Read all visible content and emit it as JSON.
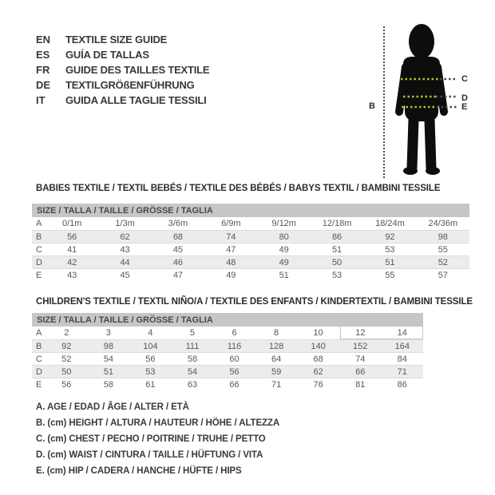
{
  "languages": [
    {
      "code": "EN",
      "title": "TEXTILE SIZE GUIDE"
    },
    {
      "code": "ES",
      "title": "GUÍA DE TALLAS"
    },
    {
      "code": "FR",
      "title": "GUIDE DES TAILLES TEXTILE"
    },
    {
      "code": "DE",
      "title": "TEXTILGRÖßENFÜHRUNG"
    },
    {
      "code": "IT",
      "title": "GUIDA ALLE TAGLIE TESSILI"
    }
  ],
  "figure": {
    "height_label": "B",
    "chest_label": "C",
    "waist_label": "D",
    "hip_label": "E",
    "silhouette_color": "#0d0d0d",
    "measure_line_color": "#b5c21e",
    "outer_dots_color": "#4a4a4a"
  },
  "size_header": "SIZE / TALLA / TAILLE / GRÖSSE / TAGLIA",
  "tables": [
    {
      "title": "BABIES TEXTILE / TEXTIL BEBÉS / TEXTILE DES BÉBÉS / BABYS TEXTIL / BAMBINI TESSILE",
      "rows": [
        {
          "label": "A",
          "values": [
            "0/1m",
            "1/3m",
            "3/6m",
            "6/9m",
            "9/12m",
            "12/18m",
            "18/24m",
            "24/36m"
          ]
        },
        {
          "label": "B",
          "values": [
            "56",
            "62",
            "68",
            "74",
            "80",
            "86",
            "92",
            "98"
          ]
        },
        {
          "label": "C",
          "values": [
            "41",
            "43",
            "45",
            "47",
            "49",
            "51",
            "53",
            "55"
          ]
        },
        {
          "label": "D",
          "values": [
            "42",
            "44",
            "46",
            "48",
            "49",
            "50",
            "51",
            "52"
          ]
        },
        {
          "label": "E",
          "values": [
            "43",
            "45",
            "47",
            "49",
            "51",
            "53",
            "55",
            "57"
          ]
        }
      ]
    },
    {
      "title": "CHILDREN'S TEXTILE / TEXTIL NIÑO/A / TEXTILE DES ENFANTS / KINDERTEXTIL / BAMBINI TESSILE",
      "rows": [
        {
          "label": "A",
          "values": [
            "2",
            "3",
            "4",
            "5",
            "6",
            "8",
            "10",
            "12",
            "14"
          ]
        },
        {
          "label": "B",
          "values": [
            "92",
            "98",
            "104",
            "111",
            "116",
            "128",
            "140",
            "152",
            "164"
          ]
        },
        {
          "label": "C",
          "values": [
            "52",
            "54",
            "56",
            "58",
            "60",
            "64",
            "68",
            "74",
            "84"
          ]
        },
        {
          "label": "D",
          "values": [
            "50",
            "51",
            "53",
            "54",
            "56",
            "59",
            "62",
            "66",
            "71"
          ]
        },
        {
          "label": "E",
          "values": [
            "56",
            "58",
            "61",
            "63",
            "66",
            "71",
            "76",
            "81",
            "86"
          ]
        }
      ]
    }
  ],
  "legend": [
    "A. AGE / EDAD / ÂGE / ALTER / ETÀ",
    "B. (cm) HEIGHT / ALTURA / HAUTEUR / HÖHE / ALTEZZA",
    "C. (cm) CHEST / PECHO / POITRINE / TRUHE / PETTO",
    "D. (cm) WAIST / CINTURA / TAILLE / HÜFTUNG / VITA",
    "E. (cm) HIP / CADERA / HANCHE / HÜFTE / HIPS"
  ]
}
